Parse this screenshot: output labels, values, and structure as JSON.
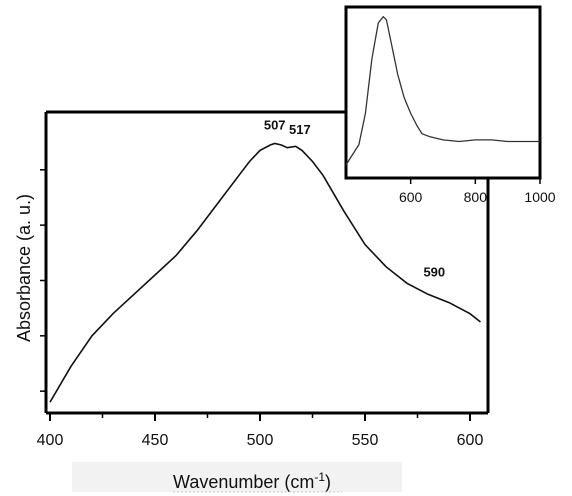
{
  "chart_data": [
    {
      "type": "line",
      "xlabel": "Wavenumber (cm",
      "xlabel_sup": "-1",
      "xlabel_close": ")",
      "ylabel": "Absorbance (a. u.)",
      "xlim": [
        400,
        605
      ],
      "ylim": [
        0.5,
        10.8
      ],
      "grid": false,
      "x_ticks": [
        "400",
        "450",
        "500",
        "550",
        "600"
      ],
      "annotations": [
        {
          "text": "507",
          "x": 507,
          "y": 10.45
        },
        {
          "text": "517",
          "x": 519,
          "y": 10.3
        },
        {
          "text": "590",
          "x": 583,
          "y": 5.15
        }
      ],
      "series": [
        {
          "x": [
            400,
            410,
            420,
            430,
            440,
            450,
            460,
            470,
            480,
            490,
            495,
            500,
            505,
            507,
            510,
            513,
            517,
            520,
            525,
            530,
            540,
            550,
            560,
            570,
            580,
            590,
            600,
            605
          ],
          "y": [
            0.6,
            1.9,
            3.0,
            3.8,
            4.5,
            5.2,
            5.9,
            6.8,
            7.8,
            8.8,
            9.3,
            9.7,
            9.9,
            9.95,
            9.9,
            9.8,
            9.85,
            9.7,
            9.3,
            8.8,
            7.5,
            6.3,
            5.5,
            4.9,
            4.5,
            4.2,
            3.8,
            3.5
          ]
        }
      ]
    },
    {
      "type": "line",
      "xlabel": "",
      "ylabel": "",
      "xlim": [
        400,
        1000
      ],
      "ylim": [
        0,
        1
      ],
      "grid": false,
      "x_ticks": [
        "600",
        "800",
        "1000"
      ],
      "series": [
        {
          "x": [
            400,
            440,
            460,
            480,
            500,
            515,
            525,
            540,
            560,
            580,
            600,
            620,
            635,
            660,
            700,
            750,
            800,
            850,
            900,
            950,
            1000
          ],
          "y": [
            0.02,
            0.15,
            0.35,
            0.7,
            0.93,
            0.97,
            0.95,
            0.8,
            0.6,
            0.45,
            0.35,
            0.27,
            0.22,
            0.2,
            0.18,
            0.17,
            0.18,
            0.18,
            0.17,
            0.17,
            0.17
          ]
        }
      ]
    }
  ]
}
